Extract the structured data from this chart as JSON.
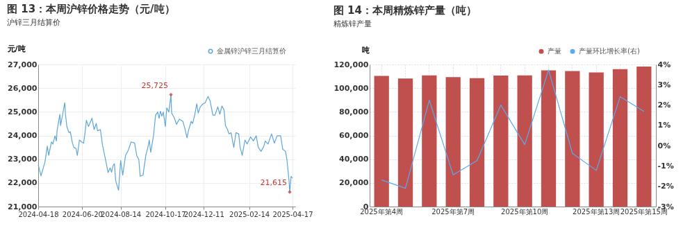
{
  "chart_data": [
    {
      "type": "line",
      "title": "图 13：本周沪锌价格走势（元/吨）",
      "subtitle": "沪锌三月结算价",
      "ylabel": "元/吨",
      "x": [
        "2024-04-18",
        "2024-04-22",
        "2024-04-27",
        "2024-04-28",
        "2024-05-01",
        "2024-05-03",
        "2024-05-07",
        "2024-05-09",
        "2024-05-12",
        "2024-05-14",
        "2024-05-15",
        "2024-05-19",
        "2024-05-20",
        "2024-05-23",
        "2024-05-26",
        "2024-05-27",
        "2024-05-29",
        "2024-06-01",
        "2024-06-03",
        "2024-06-06",
        "2024-06-08",
        "2024-06-11",
        "2024-06-13",
        "2024-06-16",
        "2024-06-19",
        "2024-06-22",
        "2024-06-24",
        "2024-06-26",
        "2024-06-29",
        "2024-07-04",
        "2024-07-07",
        "2024-07-10",
        "2024-07-12",
        "2024-07-16",
        "2024-07-19",
        "2024-07-24",
        "2024-07-27",
        "2024-07-30",
        "2024-08-01",
        "2024-08-03",
        "2024-08-05",
        "2024-08-07",
        "2024-08-11",
        "2024-08-14",
        "2024-08-17",
        "2024-08-21",
        "2024-08-25",
        "2024-08-29",
        "2024-09-03",
        "2024-09-06",
        "2024-09-09",
        "2024-09-11",
        "2024-09-15",
        "2024-09-19",
        "2024-09-22",
        "2024-09-24",
        "2024-09-26",
        "2024-09-30",
        "2024-10-03",
        "2024-10-06",
        "2024-10-08",
        "2024-10-10",
        "2024-10-12",
        "2024-10-14",
        "2024-10-17",
        "2024-10-19",
        "2024-10-22",
        "2024-10-25",
        "2024-10-26",
        "2024-10-30",
        "2024-11-02",
        "2024-11-06",
        "2024-11-11",
        "2024-11-14",
        "2024-11-17",
        "2024-11-19",
        "2024-11-23",
        "2024-11-25",
        "2024-11-28",
        "2024-12-01",
        "2024-12-03",
        "2024-12-06",
        "2024-12-10",
        "2024-12-13",
        "2024-12-17",
        "2024-12-20",
        "2024-12-24",
        "2024-12-27",
        "2024-12-31",
        "2025-01-03",
        "2025-01-06",
        "2025-01-09",
        "2025-01-11",
        "2025-01-14",
        "2025-01-16",
        "2025-01-19",
        "2025-01-23",
        "2025-01-26",
        "2025-01-30",
        "2025-02-01",
        "2025-02-04",
        "2025-02-08",
        "2025-02-11",
        "2025-02-16",
        "2025-02-20",
        "2025-02-24",
        "2025-02-27",
        "2025-03-03",
        "2025-03-07",
        "2025-03-09",
        "2025-03-13",
        "2025-03-18",
        "2025-03-22",
        "2025-03-26",
        "2025-03-31",
        "2025-04-03",
        "2025-04-07",
        "2025-04-09",
        "2025-04-12",
        "2025-04-13",
        "2025-04-15",
        "2025-04-17"
      ],
      "series": [
        {
          "name": "金属锌沪锌三月结算价",
          "color": "#5ea6d8",
          "values": [
            22760,
            22300,
            22810,
            22940,
            23550,
            23160,
            23730,
            23640,
            23990,
            23770,
            24200,
            24900,
            24420,
            24900,
            25380,
            24900,
            24380,
            24120,
            24160,
            23680,
            23500,
            23460,
            23160,
            23810,
            23730,
            23680,
            24120,
            24640,
            24380,
            24730,
            24250,
            24510,
            24200,
            24250,
            23600,
            22890,
            22440,
            22630,
            22450,
            22720,
            22810,
            22070,
            21690,
            22940,
            22330,
            23160,
            23380,
            23730,
            23680,
            23160,
            22980,
            22280,
            22330,
            23160,
            23500,
            23810,
            23290,
            23990,
            24860,
            24990,
            24730,
            25030,
            24820,
            24990,
            24380,
            25170,
            24990,
            25725,
            24950,
            24730,
            24470,
            24690,
            24600,
            24290,
            23900,
            24200,
            24600,
            24510,
            24860,
            25340,
            24950,
            25210,
            25340,
            25380,
            25650,
            25470,
            24860,
            24860,
            25210,
            24900,
            25250,
            25080,
            24420,
            24250,
            24070,
            24120,
            23500,
            24120,
            24070,
            23500,
            23160,
            23810,
            23640,
            23940,
            23770,
            23990,
            23500,
            23330,
            23550,
            23770,
            23640,
            24070,
            23680,
            23990,
            23990,
            23420,
            23330,
            22980,
            22110,
            21615,
            22280,
            22200
          ]
        }
      ],
      "xlim": [
        "2024-04-18",
        "2025-04-21"
      ],
      "xticks": [
        "2024-04-18",
        "2024-06-20",
        "2024-08-14",
        "2024-10-17",
        "2024-12-11",
        "2025-02-14",
        "2025-04-17"
      ],
      "ylim": [
        21000,
        27000
      ],
      "yticks": [
        {
          "value": 21000,
          "label": "21,000"
        },
        {
          "value": 22000,
          "label": "22,000"
        },
        {
          "value": 23000,
          "label": "23,000"
        },
        {
          "value": 24000,
          "label": "24,000"
        },
        {
          "value": 25000,
          "label": "25,000"
        },
        {
          "value": 26000,
          "label": "26,000"
        },
        {
          "value": 27000,
          "label": "27,000"
        }
      ],
      "grid": true,
      "legend": "top right",
      "annotations": [
        {
          "text": "25,725",
          "x": "2024-10-25",
          "y": 25725
        },
        {
          "text": "21,615",
          "x": "2025-04-13",
          "y": 21615
        }
      ]
    },
    {
      "type": "bar",
      "title": "图 14：本周精炼锌产量（吨）",
      "subtitle": "精炼锌产量",
      "ylabel": "吨",
      "categories": [
        "2025年第4周",
        null,
        null,
        "2025年第7周",
        null,
        null,
        "2025年第10周",
        null,
        null,
        "2025年第13周",
        null,
        "2025年第15周"
      ],
      "series": [
        {
          "name": "产量",
          "color": "#c0504d",
          "values": [
            110400,
            108200,
            110800,
            109300,
            108400,
            110600,
            110800,
            115000,
            114500,
            113200,
            116000,
            118200
          ]
        },
        {
          "name": "产量环比增长率(右)",
          "type": "line",
          "axis": "y2",
          "color": "#5aaaf0",
          "values": [
            -1.69,
            -2.1,
            2.24,
            -1.44,
            -0.74,
            2.0,
            0.05,
            3.73,
            -0.38,
            -1.22,
            2.41,
            1.69
          ]
        }
      ],
      "ylim": [
        0,
        120000
      ],
      "yticks": [
        0,
        {
          "value": 20000,
          "label": "20,000"
        },
        {
          "value": 40000,
          "label": "40,000"
        },
        {
          "value": 60000,
          "label": "60,000"
        },
        {
          "value": 80000,
          "label": "80,000"
        },
        {
          "value": 100000,
          "label": "100,000"
        },
        {
          "value": 120000,
          "label": "120,000"
        }
      ],
      "y2lim": [
        -3,
        4
      ],
      "y2ticks": [
        {
          "value": -3,
          "label": "-3%"
        },
        {
          "value": -2,
          "label": "-2%"
        },
        {
          "value": -1,
          "label": "-1%"
        },
        {
          "value": 0,
          "label": "0%"
        },
        {
          "value": 1,
          "label": "1%"
        },
        {
          "value": 2,
          "label": "2%"
        },
        {
          "value": 3,
          "label": "3%"
        },
        {
          "value": 4,
          "label": "4%"
        }
      ],
      "grid": true,
      "legend": "top right"
    }
  ]
}
